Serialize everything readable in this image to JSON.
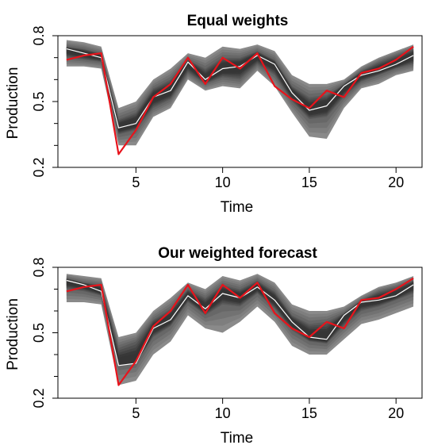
{
  "chart_data": [
    {
      "type": "area",
      "title": "Equal weights",
      "xlabel": "Time",
      "ylabel": "Production",
      "xlim": [
        0.5,
        21.5
      ],
      "ylim": [
        0.2,
        0.8
      ],
      "x_ticks": [
        5,
        10,
        15,
        20
      ],
      "y_ticks": [
        0.2,
        0.5,
        0.8
      ],
      "y_minor_ticks": [
        0.3,
        0.4,
        0.6,
        0.7
      ],
      "x": [
        1,
        2,
        3,
        4,
        5,
        6,
        7,
        8,
        9,
        10,
        11,
        12,
        13,
        14,
        15,
        16,
        17,
        18,
        19,
        20,
        21
      ],
      "band": {
        "name": "",
        "color": "#9a9a9a",
        "upper": [
          0.78,
          0.77,
          0.75,
          0.47,
          0.5,
          0.6,
          0.65,
          0.72,
          0.7,
          0.75,
          0.74,
          0.76,
          0.73,
          0.62,
          0.58,
          0.58,
          0.6,
          0.66,
          0.7,
          0.73,
          0.76
        ],
        "inner_upper": [
          0.75,
          0.74,
          0.72,
          0.42,
          0.45,
          0.56,
          0.6,
          0.69,
          0.65,
          0.7,
          0.7,
          0.73,
          0.69,
          0.57,
          0.52,
          0.53,
          0.58,
          0.64,
          0.68,
          0.71,
          0.74
        ],
        "inner_lower": [
          0.7,
          0.69,
          0.68,
          0.35,
          0.37,
          0.47,
          0.51,
          0.63,
          0.58,
          0.61,
          0.6,
          0.67,
          0.62,
          0.5,
          0.42,
          0.43,
          0.52,
          0.59,
          0.62,
          0.65,
          0.67
        ],
        "lower": [
          0.66,
          0.66,
          0.65,
          0.3,
          0.3,
          0.43,
          0.47,
          0.6,
          0.55,
          0.57,
          0.56,
          0.64,
          0.57,
          0.45,
          0.34,
          0.33,
          0.47,
          0.56,
          0.58,
          0.62,
          0.64
        ]
      },
      "series": [
        {
          "name": "",
          "role": "median",
          "color": "#ffffff",
          "values": [
            0.74,
            0.72,
            0.7,
            0.38,
            0.4,
            0.52,
            0.55,
            0.68,
            0.6,
            0.65,
            0.66,
            0.71,
            0.67,
            0.54,
            0.46,
            0.48,
            0.57,
            0.62,
            0.64,
            0.67,
            0.71
          ]
        },
        {
          "name": "",
          "role": "actual",
          "color": "#e8131b",
          "values": [
            0.69,
            0.71,
            0.72,
            0.26,
            0.37,
            0.52,
            0.58,
            0.7,
            0.58,
            0.7,
            0.65,
            0.72,
            0.57,
            0.51,
            0.47,
            0.55,
            0.52,
            0.63,
            0.65,
            0.69,
            0.75
          ]
        }
      ]
    },
    {
      "type": "area",
      "title": "Our weighted forecast",
      "xlabel": "Time",
      "ylabel": "Production",
      "xlim": [
        0.5,
        21.5
      ],
      "ylim": [
        0.2,
        0.8
      ],
      "x_ticks": [
        5,
        10,
        15,
        20
      ],
      "y_ticks": [
        0.2,
        0.5,
        0.8
      ],
      "y_minor_ticks": [
        0.3,
        0.4,
        0.6,
        0.7
      ],
      "x": [
        1,
        2,
        3,
        4,
        5,
        6,
        7,
        8,
        9,
        10,
        11,
        12,
        13,
        14,
        15,
        16,
        17,
        18,
        19,
        20,
        21
      ],
      "band": {
        "name": "",
        "color": "#9a9a9a",
        "upper": [
          0.77,
          0.76,
          0.75,
          0.48,
          0.5,
          0.6,
          0.66,
          0.73,
          0.7,
          0.76,
          0.74,
          0.77,
          0.73,
          0.63,
          0.6,
          0.6,
          0.62,
          0.67,
          0.71,
          0.73,
          0.76
        ],
        "inner_upper": [
          0.75,
          0.73,
          0.72,
          0.43,
          0.46,
          0.56,
          0.61,
          0.7,
          0.66,
          0.72,
          0.7,
          0.74,
          0.69,
          0.58,
          0.54,
          0.55,
          0.59,
          0.65,
          0.69,
          0.71,
          0.74
        ],
        "inner_lower": [
          0.7,
          0.69,
          0.67,
          0.35,
          0.36,
          0.48,
          0.53,
          0.64,
          0.58,
          0.63,
          0.62,
          0.68,
          0.61,
          0.51,
          0.46,
          0.45,
          0.53,
          0.6,
          0.62,
          0.65,
          0.68
        ],
        "lower": [
          0.64,
          0.64,
          0.63,
          0.26,
          0.28,
          0.4,
          0.46,
          0.58,
          0.52,
          0.5,
          0.55,
          0.62,
          0.55,
          0.44,
          0.4,
          0.4,
          0.47,
          0.54,
          0.56,
          0.59,
          0.62
        ]
      },
      "series": [
        {
          "name": "",
          "role": "median",
          "color": "#ffffff",
          "values": [
            0.74,
            0.72,
            0.69,
            0.35,
            0.36,
            0.52,
            0.56,
            0.67,
            0.61,
            0.68,
            0.66,
            0.71,
            0.65,
            0.55,
            0.48,
            0.47,
            0.58,
            0.64,
            0.65,
            0.67,
            0.72
          ]
        },
        {
          "name": "",
          "role": "actual",
          "color": "#e8131b",
          "values": [
            0.69,
            0.71,
            0.72,
            0.26,
            0.37,
            0.53,
            0.6,
            0.72,
            0.59,
            0.72,
            0.66,
            0.73,
            0.59,
            0.52,
            0.48,
            0.55,
            0.52,
            0.65,
            0.66,
            0.7,
            0.75
          ]
        }
      ]
    }
  ]
}
